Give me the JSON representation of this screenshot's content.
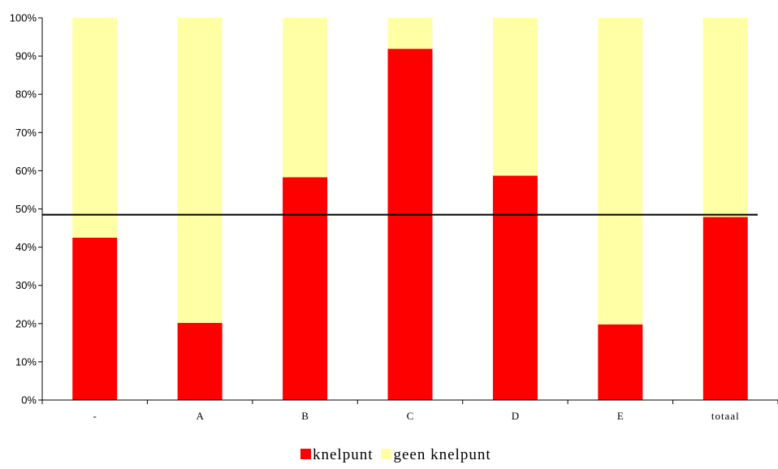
{
  "chart_data": {
    "type": "bar",
    "stacked": true,
    "percent_stacked": true,
    "categories": [
      "-",
      "A",
      "B",
      "C",
      "D",
      "E",
      "totaal"
    ],
    "series": [
      {
        "name": "knelpunt",
        "color": "#ff0000",
        "values": [
          42.5,
          20.2,
          58.3,
          91.9,
          58.7,
          19.8,
          47.9
        ]
      },
      {
        "name": "geen knelpunt",
        "color": "#ffffa6",
        "values": [
          57.5,
          79.8,
          41.7,
          8.1,
          41.3,
          80.2,
          52.1
        ]
      }
    ],
    "reference_line": {
      "value": 48.5,
      "color": "#000000"
    },
    "yticks": [
      "0%",
      "10%",
      "20%",
      "30%",
      "40%",
      "50%",
      "60%",
      "70%",
      "80%",
      "90%",
      "100%"
    ],
    "ylim": [
      0,
      100
    ],
    "title": "",
    "xlabel": "",
    "ylabel": "",
    "grid": false,
    "legend_position": "bottom-center"
  }
}
